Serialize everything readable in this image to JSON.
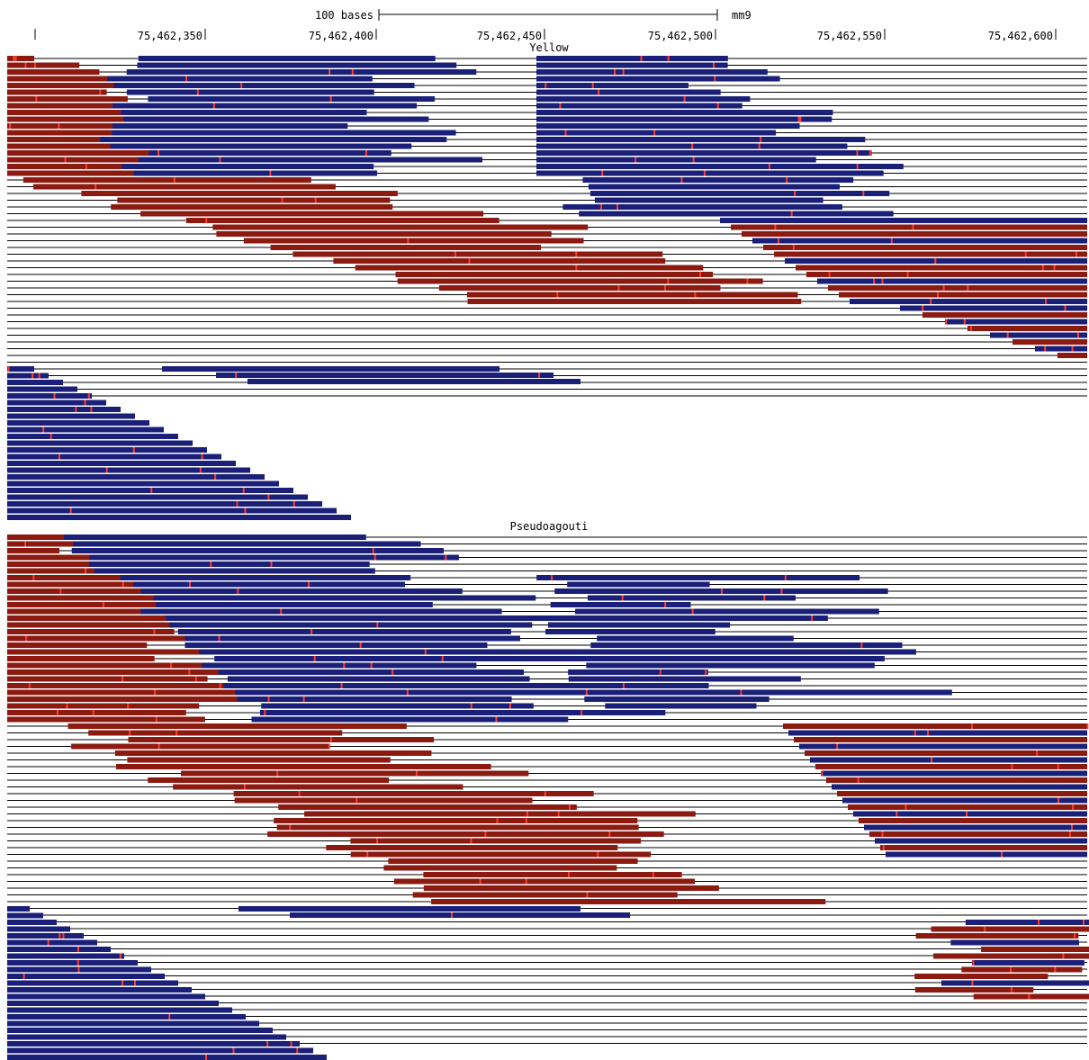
{
  "ruler": {
    "scale_label": "100 bases",
    "assembly": "mm9",
    "positions": [
      "75,462,350",
      "75,462,400",
      "75,462,450",
      "75,462,500",
      "75,462,550",
      "75,462,600"
    ]
  },
  "tracks": [
    {
      "label": "Yellow"
    },
    {
      "label": "Pseudoagouti"
    }
  ],
  "colors": {
    "forward_read": "#8b1a10",
    "reverse_read": "#1a1f78",
    "guide_line": "#000000",
    "background": "#ffffff",
    "mismatch": "#ff3b2f"
  }
}
